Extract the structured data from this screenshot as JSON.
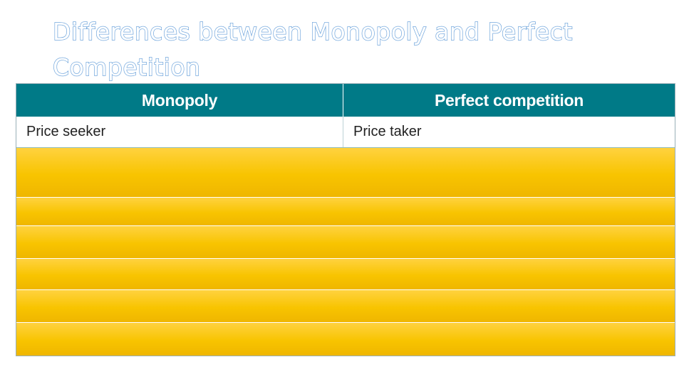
{
  "slide": {
    "title": "Differences between Monopoly and Perfect Competition"
  },
  "table": {
    "headers": [
      "Monopoly",
      "Perfect competition"
    ],
    "rows": [
      [
        "Price seeker",
        "Price taker"
      ]
    ],
    "hidden_row_count": 6
  },
  "colors": {
    "header_bg": "#007a87",
    "title_outline": "#5f9bd8",
    "cover_gold": "#f8c400"
  }
}
